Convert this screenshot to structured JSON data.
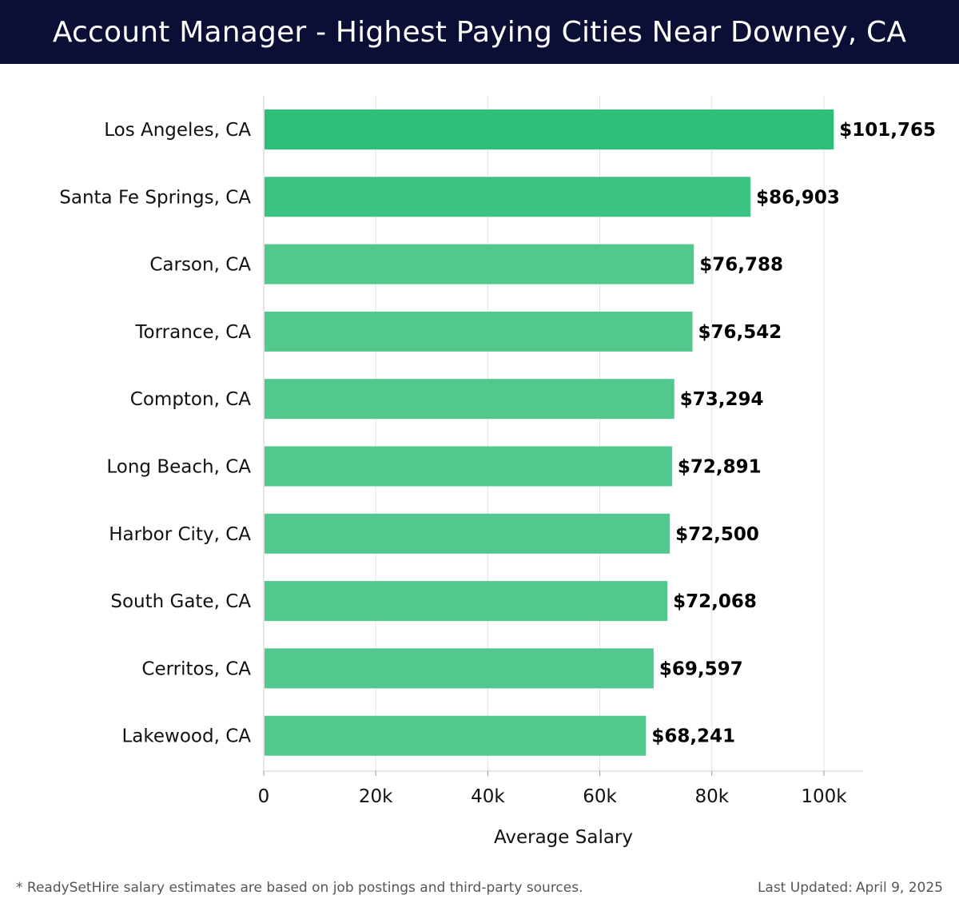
{
  "header": {
    "title": "Account Manager - Highest Paying Cities Near Downey, CA"
  },
  "chart_data": {
    "type": "bar",
    "orientation": "horizontal",
    "title": "Account Manager - Highest Paying Cities Near Downey, CA",
    "categories": [
      "Los Angeles, CA",
      "Santa Fe Springs, CA",
      "Carson, CA",
      "Torrance, CA",
      "Compton, CA",
      "Long Beach, CA",
      "Harbor City, CA",
      "South Gate, CA",
      "Cerritos, CA",
      "Lakewood, CA"
    ],
    "values": [
      101765,
      86903,
      76788,
      76542,
      73294,
      72891,
      72500,
      72068,
      69597,
      68241
    ],
    "value_labels": [
      "$101,765",
      "$86,903",
      "$76,788",
      "$76,542",
      "$73,294",
      "$72,891",
      "$72,500",
      "$72,068",
      "$69,597",
      "$68,241"
    ],
    "xlabel": "Average Salary",
    "ylabel": "",
    "xlim": [
      0,
      107000
    ],
    "xticks": [
      0,
      20000,
      40000,
      60000,
      80000,
      100000
    ],
    "xtick_labels": [
      "0",
      "20k",
      "40k",
      "60k",
      "80k",
      "100k"
    ],
    "grid": true,
    "colors": {
      "top_bar": "#2dbf78",
      "second_bar": "#3cc283",
      "bar": "#52c78e",
      "grid": "#e3e3e3",
      "axis": "#cccccc",
      "text": "#111111"
    }
  },
  "footer": {
    "note": "* ReadySetHire salary estimates are based on job postings and third-party sources.",
    "updated_label": "Last Updated:",
    "updated_date": "April 9, 2025"
  }
}
